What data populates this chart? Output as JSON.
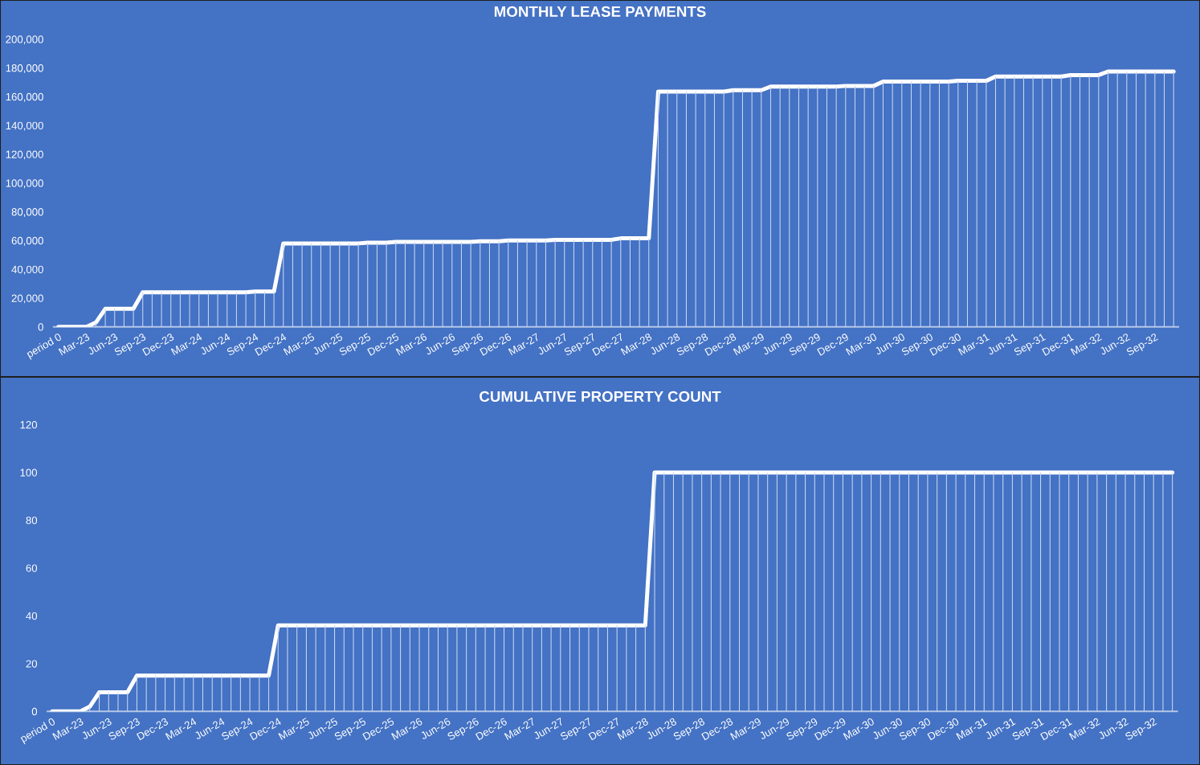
{
  "chart_data": [
    {
      "type": "line",
      "title": "MONTHLY LEASE PAYMENTS",
      "categories": [
        "period 0",
        null,
        null,
        "Mar-23",
        null,
        null,
        "Jun-23",
        null,
        null,
        "Sep-23",
        null,
        null,
        "Dec-23",
        null,
        null,
        "Mar-24",
        null,
        null,
        "Jun-24",
        null,
        null,
        "Sep-24",
        null,
        null,
        "Dec-24",
        null,
        null,
        "Mar-25",
        null,
        null,
        "Jun-25",
        null,
        null,
        "Sep-25",
        null,
        null,
        "Dec-25",
        null,
        null,
        "Mar-26",
        null,
        null,
        "Jun-26",
        null,
        null,
        "Sep-26",
        null,
        null,
        "Dec-26",
        null,
        null,
        "Mar-27",
        null,
        null,
        "Jun-27",
        null,
        null,
        "Sep-27",
        null,
        null,
        "Dec-27",
        null,
        null,
        "Mar-28",
        null,
        null,
        "Jun-28",
        null,
        null,
        "Sep-28",
        null,
        null,
        "Dec-28",
        null,
        null,
        "Mar-29",
        null,
        null,
        "Jun-29",
        null,
        null,
        "Sep-29",
        null,
        null,
        "Dec-29",
        null,
        null,
        "Mar-30",
        null,
        null,
        "Jun-30",
        null,
        null,
        "Sep-30",
        null,
        null,
        "Dec-30",
        null,
        null,
        "Mar-31",
        null,
        null,
        "Jun-31",
        null,
        null,
        "Sep-31",
        null,
        null,
        "Dec-31",
        null,
        null,
        "Mar-32",
        null,
        null,
        "Jun-32",
        null,
        null,
        "Sep-32",
        null,
        null
      ],
      "series": [
        {
          "type": "bar",
          "color": "#c9d6f0",
          "values": [
            0,
            0,
            0,
            0,
            3000,
            12500,
            12500,
            12500,
            12500,
            24000,
            24000,
            24000,
            24000,
            24000,
            24000,
            24000,
            24000,
            24000,
            24000,
            24000,
            24000,
            24500,
            24500,
            24500,
            58000,
            58000,
            58000,
            58000,
            58000,
            58000,
            58000,
            58000,
            58000,
            58500,
            58500,
            58500,
            59000,
            59000,
            59000,
            59000,
            59000,
            59000,
            59000,
            59000,
            59000,
            59500,
            59500,
            59500,
            60000,
            60000,
            60000,
            60000,
            60000,
            60500,
            60500,
            60500,
            60500,
            60500,
            60500,
            60500,
            61500,
            61500,
            61500,
            61500,
            163500,
            163500,
            163500,
            163500,
            163500,
            163500,
            163500,
            163500,
            164500,
            164500,
            164500,
            164500,
            167000,
            167000,
            167000,
            167000,
            167000,
            167000,
            167000,
            167000,
            167500,
            167500,
            167500,
            167500,
            170500,
            170500,
            170500,
            170500,
            170500,
            170500,
            170500,
            170500,
            171000,
            171000,
            171000,
            171000,
            174000,
            174000,
            174000,
            174000,
            174000,
            174000,
            174000,
            174000,
            175000,
            175000,
            175000,
            175000,
            177500,
            177500,
            177500,
            177500,
            177500,
            177500,
            177500,
            177500
          ]
        },
        {
          "color": "#ffffff",
          "values": [
            0,
            0,
            0,
            0,
            3000,
            12500,
            12500,
            12500,
            12500,
            24000,
            24000,
            24000,
            24000,
            24000,
            24000,
            24000,
            24000,
            24000,
            24000,
            24000,
            24000,
            24500,
            24500,
            24500,
            58000,
            58000,
            58000,
            58000,
            58000,
            58000,
            58000,
            58000,
            58000,
            58500,
            58500,
            58500,
            59000,
            59000,
            59000,
            59000,
            59000,
            59000,
            59000,
            59000,
            59000,
            59500,
            59500,
            59500,
            60000,
            60000,
            60000,
            60000,
            60000,
            60500,
            60500,
            60500,
            60500,
            60500,
            60500,
            60500,
            61500,
            61500,
            61500,
            61500,
            163500,
            163500,
            163500,
            163500,
            163500,
            163500,
            163500,
            163500,
            164500,
            164500,
            164500,
            164500,
            167000,
            167000,
            167000,
            167000,
            167000,
            167000,
            167000,
            167000,
            167500,
            167500,
            167500,
            167500,
            170500,
            170500,
            170500,
            170500,
            170500,
            170500,
            170500,
            170500,
            171000,
            171000,
            171000,
            171000,
            174000,
            174000,
            174000,
            174000,
            174000,
            174000,
            174000,
            174000,
            175000,
            175000,
            175000,
            175000,
            177500,
            177500,
            177500,
            177500,
            177500,
            177500,
            177500,
            177500
          ]
        }
      ],
      "ylim": [
        0,
        200000
      ],
      "yticks": [
        0,
        {
          "value": 20000,
          "label": "20,000"
        },
        {
          "value": 40000,
          "label": "40,000"
        },
        {
          "value": 60000,
          "label": "60,000"
        },
        {
          "value": 80000,
          "label": "80,000"
        },
        {
          "value": 100000,
          "label": "100,000"
        },
        {
          "value": 120000,
          "label": "120,000"
        },
        {
          "value": 140000,
          "label": "140,000"
        },
        {
          "value": 160000,
          "label": "160,000"
        },
        {
          "value": 180000,
          "label": "180,000"
        },
        {
          "value": 200000,
          "label": "200,000"
        }
      ]
    },
    {
      "type": "line",
      "title": "CUMULATIVE PROPERTY COUNT",
      "categories": [
        "period 0",
        null,
        null,
        "Mar-23",
        null,
        null,
        "Jun-23",
        null,
        null,
        "Sep-23",
        null,
        null,
        "Dec-23",
        null,
        null,
        "Mar-24",
        null,
        null,
        "Jun-24",
        null,
        null,
        "Sep-24",
        null,
        null,
        "Dec-24",
        null,
        null,
        "Mar-25",
        null,
        null,
        "Jun-25",
        null,
        null,
        "Sep-25",
        null,
        null,
        "Dec-25",
        null,
        null,
        "Mar-26",
        null,
        null,
        "Jun-26",
        null,
        null,
        "Sep-26",
        null,
        null,
        "Dec-26",
        null,
        null,
        "Mar-27",
        null,
        null,
        "Jun-27",
        null,
        null,
        "Sep-27",
        null,
        null,
        "Dec-27",
        null,
        null,
        "Mar-28",
        null,
        null,
        "Jun-28",
        null,
        null,
        "Sep-28",
        null,
        null,
        "Dec-28",
        null,
        null,
        "Mar-29",
        null,
        null,
        "Jun-29",
        null,
        null,
        "Sep-29",
        null,
        null,
        "Dec-29",
        null,
        null,
        "Mar-30",
        null,
        null,
        "Jun-30",
        null,
        null,
        "Sep-30",
        null,
        null,
        "Dec-30",
        null,
        null,
        "Mar-31",
        null,
        null,
        "Jun-31",
        null,
        null,
        "Sep-31",
        null,
        null,
        "Dec-31",
        null,
        null,
        "Mar-32",
        null,
        null,
        "Jun-32",
        null,
        null,
        "Sep-32",
        null,
        null
      ],
      "series": [
        {
          "type": "bar",
          "color": "#c9d6f0",
          "values": [
            0,
            0,
            0,
            0,
            2,
            8,
            8,
            8,
            8,
            15,
            15,
            15,
            15,
            15,
            15,
            15,
            15,
            15,
            15,
            15,
            15,
            15,
            15,
            15,
            36,
            36,
            36,
            36,
            36,
            36,
            36,
            36,
            36,
            36,
            36,
            36,
            36,
            36,
            36,
            36,
            36,
            36,
            36,
            36,
            36,
            36,
            36,
            36,
            36,
            36,
            36,
            36,
            36,
            36,
            36,
            36,
            36,
            36,
            36,
            36,
            36,
            36,
            36,
            36,
            100,
            100,
            100,
            100,
            100,
            100,
            100,
            100,
            100,
            100,
            100,
            100,
            100,
            100,
            100,
            100,
            100,
            100,
            100,
            100,
            100,
            100,
            100,
            100,
            100,
            100,
            100,
            100,
            100,
            100,
            100,
            100,
            100,
            100,
            100,
            100,
            100,
            100,
            100,
            100,
            100,
            100,
            100,
            100,
            100,
            100,
            100,
            100,
            100,
            100,
            100,
            100,
            100,
            100,
            100,
            100
          ]
        },
        {
          "color": "#ffffff",
          "values": [
            0,
            0,
            0,
            0,
            2,
            8,
            8,
            8,
            8,
            15,
            15,
            15,
            15,
            15,
            15,
            15,
            15,
            15,
            15,
            15,
            15,
            15,
            15,
            15,
            36,
            36,
            36,
            36,
            36,
            36,
            36,
            36,
            36,
            36,
            36,
            36,
            36,
            36,
            36,
            36,
            36,
            36,
            36,
            36,
            36,
            36,
            36,
            36,
            36,
            36,
            36,
            36,
            36,
            36,
            36,
            36,
            36,
            36,
            36,
            36,
            36,
            36,
            36,
            36,
            100,
            100,
            100,
            100,
            100,
            100,
            100,
            100,
            100,
            100,
            100,
            100,
            100,
            100,
            100,
            100,
            100,
            100,
            100,
            100,
            100,
            100,
            100,
            100,
            100,
            100,
            100,
            100,
            100,
            100,
            100,
            100,
            100,
            100,
            100,
            100,
            100,
            100,
            100,
            100,
            100,
            100,
            100,
            100,
            100,
            100,
            100,
            100,
            100,
            100,
            100,
            100,
            100,
            100,
            100,
            100
          ]
        }
      ],
      "ylim": [
        0,
        120
      ],
      "yticks": [
        0,
        20,
        40,
        60,
        80,
        100,
        120
      ]
    }
  ]
}
